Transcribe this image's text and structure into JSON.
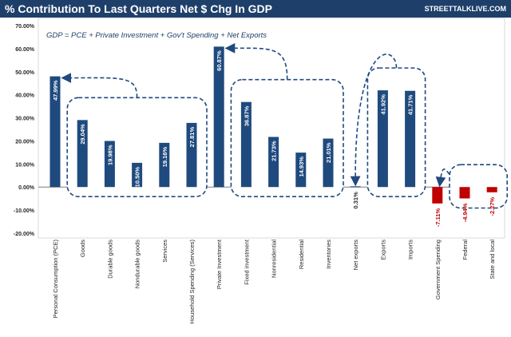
{
  "header": {
    "title": "% Contribution To Last Quarters Net $ Chg In GDP",
    "brand": "STREETTALKLIVE.COM"
  },
  "colors": {
    "header_bg": "#1f3f6b",
    "bar_positive": "#1f4a7e",
    "bar_negative": "#c00000",
    "negative_label": "#c00000",
    "bubble_stroke": "#1f4a7e",
    "bubble_fill": "#ffffff",
    "panel_bg": "#f2f2f2"
  },
  "chart_data": {
    "type": "bar",
    "title": "% Contribution To Last Quarters Net $ Chg In GDP",
    "annotation": "GDP = PCE + Private Investment + Gov't Spending + Net Exports",
    "xlabel": "",
    "ylabel": "",
    "ylim": [
      -20,
      70
    ],
    "yticks": [
      -20,
      -10,
      0,
      10,
      20,
      30,
      40,
      50,
      60,
      70
    ],
    "ytick_labels": [
      "-20.00%",
      "-10.00%",
      "0.00%",
      "10.00%",
      "20.00%",
      "30.00%",
      "40.00%",
      "50.00%",
      "60.00%",
      "70.00%"
    ],
    "grid": false,
    "categories": [
      "Personal Consumption (PCE)",
      "Goods",
      "Durable goods",
      "Nondurable goods",
      "Services",
      "Household Spending (Services)",
      "Private Investment",
      "Fixed investment",
      "Nonresidential",
      "Residential",
      "Inventories",
      "Net exports",
      "Exports",
      "Imports",
      "Government Spending",
      "Federal",
      "State and local"
    ],
    "values": [
      47.99,
      29.04,
      19.98,
      10.5,
      19.16,
      27.81,
      60.87,
      36.87,
      21.73,
      14.93,
      21.01,
      0.31,
      41.92,
      41.71,
      -7.11,
      -4.94,
      -2.27
    ],
    "value_labels": [
      "47.99%",
      "29.04%",
      "19.98%",
      "10.50%",
      "19.16%",
      "27.81%",
      "60.87%",
      "36.87%",
      "21.73%",
      "14.93%",
      "21.01%",
      "0.31%",
      "41.92%",
      "41.71%",
      "-7.11%",
      "-4.94%",
      "-2.27%"
    ],
    "groups": [
      {
        "name": "pce-components",
        "from": 1,
        "to": 5,
        "points_to": 0
      },
      {
        "name": "investment-components",
        "from": 7,
        "to": 10,
        "points_to": 6
      },
      {
        "name": "trade-components",
        "from": 12,
        "to": 13,
        "points_to": 11
      },
      {
        "name": "government-components",
        "from": 15,
        "to": 16,
        "points_to": 14
      }
    ]
  }
}
